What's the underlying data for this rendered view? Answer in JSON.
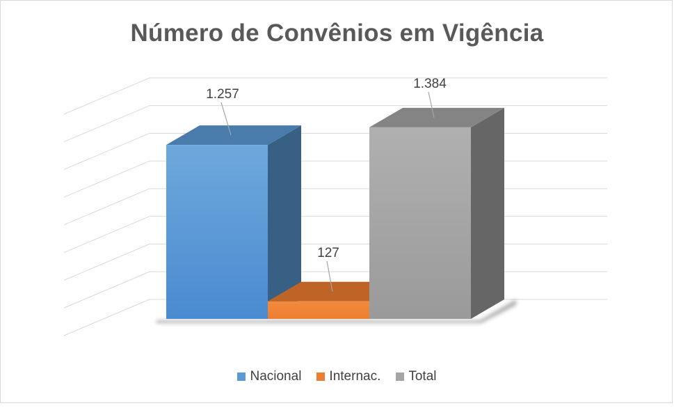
{
  "chart_data": {
    "type": "bar",
    "title": "Número de Convênios em Vigência",
    "categories": [
      "Nacional",
      "Internac.",
      "Total"
    ],
    "values": [
      1257,
      127,
      1384
    ],
    "value_labels": [
      "1.257",
      "127",
      "1.384"
    ],
    "colors": [
      "#5b9bd5",
      "#ed7d31",
      "#a5a5a5"
    ],
    "ylim": [
      0,
      1600
    ],
    "grid": true,
    "legend_position": "bottom",
    "style": "3d-column"
  },
  "legend": {
    "items": [
      {
        "label": "Nacional",
        "color": "#5b9bd5"
      },
      {
        "label": "Internac.",
        "color": "#ed7d31"
      },
      {
        "label": "Total",
        "color": "#a5a5a5"
      }
    ]
  }
}
